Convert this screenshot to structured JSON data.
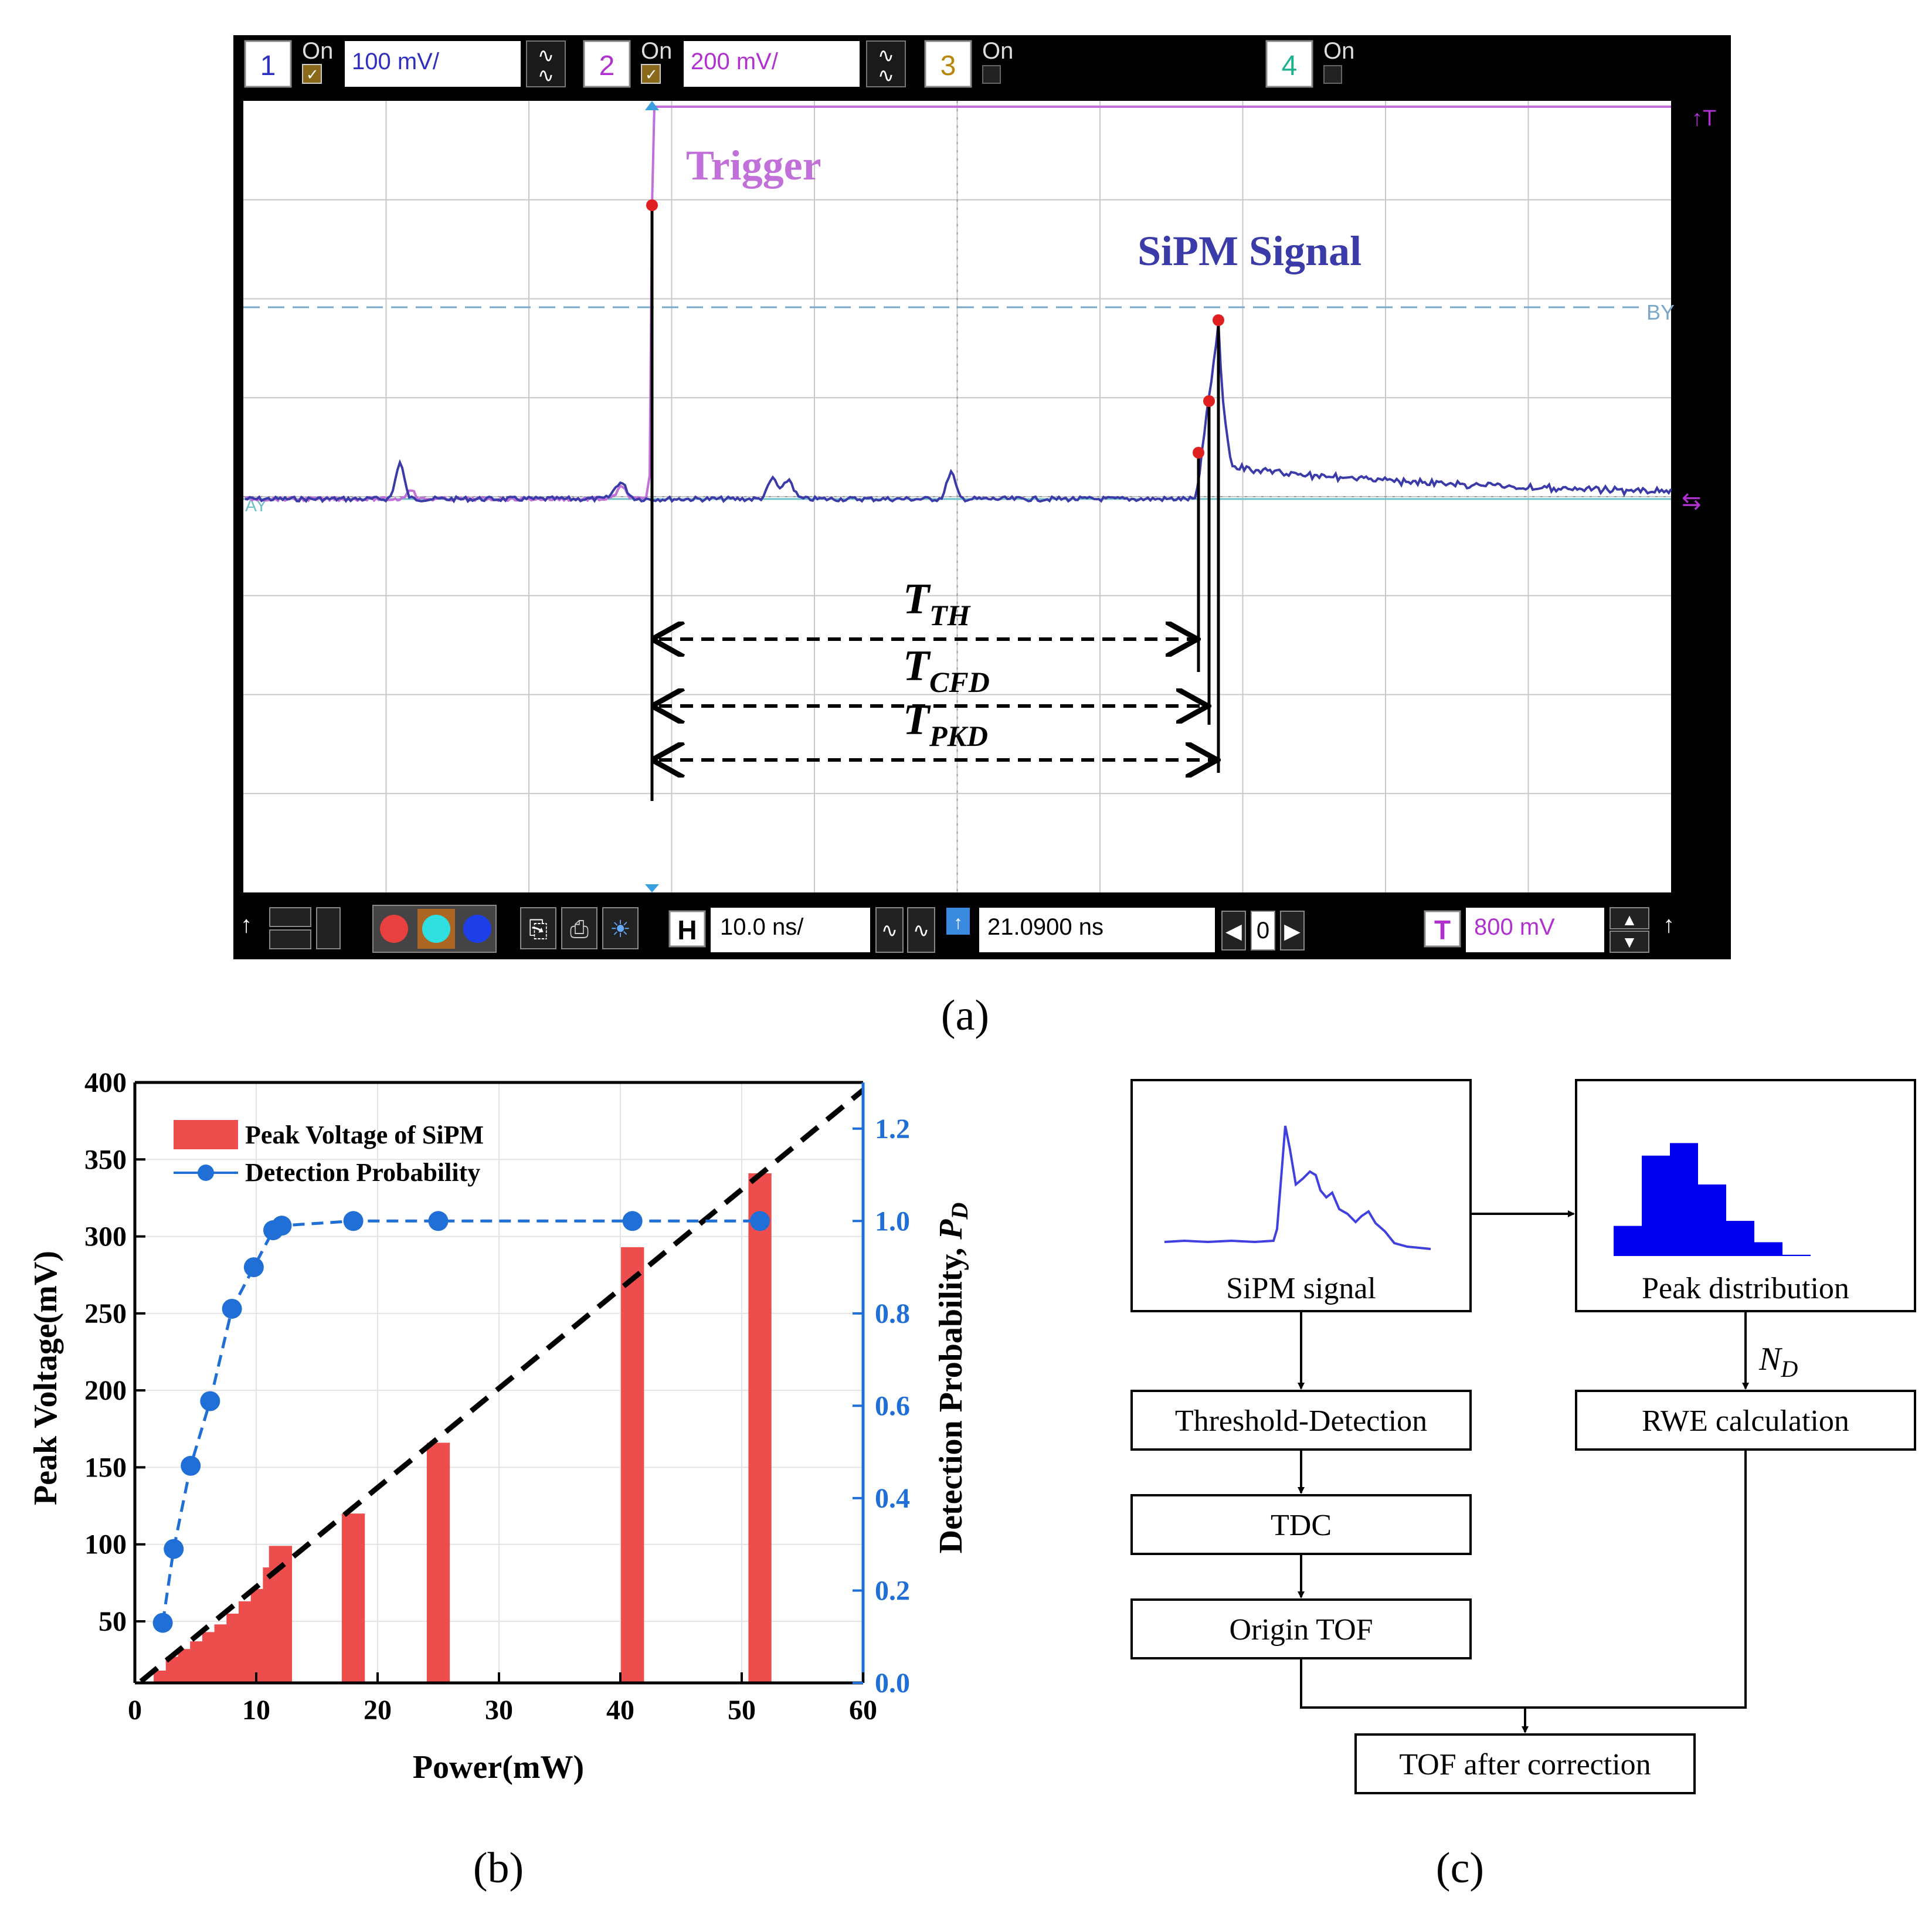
{
  "panel_labels": {
    "a": "(a)",
    "b": "(b)",
    "c": "(c)"
  },
  "scope": {
    "channels": [
      {
        "num": "1",
        "on": "On",
        "scale": "100 mV/",
        "color": "#3030c0",
        "checked": true
      },
      {
        "num": "2",
        "on": "On",
        "scale": "200 mV/",
        "color": "#b030d0",
        "checked": true
      },
      {
        "num": "3",
        "on": "On",
        "scale": "",
        "color": "#b8860b",
        "checked": false
      },
      {
        "num": "4",
        "on": "On",
        "scale": "",
        "color": "#20b090",
        "checked": false
      }
    ],
    "annotations": {
      "trigger": "Trigger",
      "sipm": "SiPM Signal",
      "t_th_main": "T",
      "t_th_sub": "TH",
      "t_cfd_main": "T",
      "t_cfd_sub": "CFD",
      "t_pkd_main": "T",
      "t_pkd_sub": "PKD",
      "by_label": "BY",
      "ay_label": "AY"
    },
    "bottom_bar": {
      "h_label": "H",
      "timebase": "10.0 ns/",
      "delay": "21.0900 ns",
      "zero": "0",
      "t_label": "T",
      "trigger_level": "800 mV"
    },
    "colors": {
      "trigger_trace": "#c070d8",
      "sipm_trace": "#3a3aa8",
      "grid": "#c8c8c8",
      "cursor": "#7aa8c8",
      "baseline": "#70c0c8",
      "marker": "#e02020",
      "frame": "#000000"
    }
  },
  "chart_data": [
    {
      "type": "bar",
      "panel": "b",
      "title": "",
      "xlabel": "Power(mW)",
      "ylabel": "Peak Voltage(mV)",
      "y2label_main": "Detection Probability, ",
      "y2label_sym": "P",
      "y2label_sub": "D",
      "xlim": [
        0,
        60
      ],
      "ylim": [
        10,
        400
      ],
      "y2lim": [
        0,
        1.3
      ],
      "xticks": [
        0,
        10,
        20,
        30,
        40,
        50,
        60
      ],
      "yticks": [
        50,
        100,
        150,
        200,
        250,
        300,
        350,
        400
      ],
      "y2ticks": [
        "0.0",
        "0.2",
        "0.4",
        "0.6",
        "0.8",
        "1.0",
        "1.2"
      ],
      "y2tick_values": [
        0,
        0.2,
        0.4,
        0.6,
        0.8,
        1.0,
        1.2
      ],
      "legend_position": "top-left",
      "series": [
        {
          "name": "Peak Voltage of SiPM",
          "kind": "bar",
          "axis": "left",
          "color": "#ee4d4d",
          "x": [
            2.5,
            3.5,
            4.5,
            5.5,
            6.5,
            7.5,
            8.5,
            9.5,
            10.5,
            11.5,
            12.0,
            18.0,
            25.0,
            41.0,
            51.5
          ],
          "values": [
            18,
            27,
            32,
            37,
            43,
            48,
            55,
            63,
            71,
            85,
            99,
            120,
            166,
            293,
            341
          ]
        },
        {
          "name": "Detection Probability",
          "kind": "line",
          "axis": "right",
          "color": "#1f6fd6",
          "x": [
            2.3,
            3.2,
            4.6,
            6.2,
            8.0,
            9.8,
            11.4,
            12.1,
            18.0,
            25.0,
            41.0,
            51.5
          ],
          "values": [
            0.13,
            0.29,
            0.47,
            0.61,
            0.81,
            0.9,
            0.98,
            0.99,
            1.0,
            1.0,
            1.0,
            1.0
          ]
        },
        {
          "kind": "fit-line",
          "axis": "left",
          "color": "#000000",
          "x": [
            0.5,
            60
          ],
          "values": [
            11,
            395
          ]
        }
      ]
    }
  ],
  "flowchart": {
    "sipm_box": "SiPM signal",
    "peak_box": "Peak distribution",
    "threshold": "Threshold-Detection",
    "tdc": "TDC",
    "origin_tof": "Origin TOF",
    "rwe": "RWE calculation",
    "tof_corrected": "TOF after correction",
    "nd_main": "N",
    "nd_sub": "D",
    "histogram": [
      0.24,
      0.8,
      0.9,
      0.57,
      0.28,
      0.11,
      0.01
    ],
    "colors": {
      "hist": "#0000ee",
      "signal": "#4040e0"
    }
  }
}
